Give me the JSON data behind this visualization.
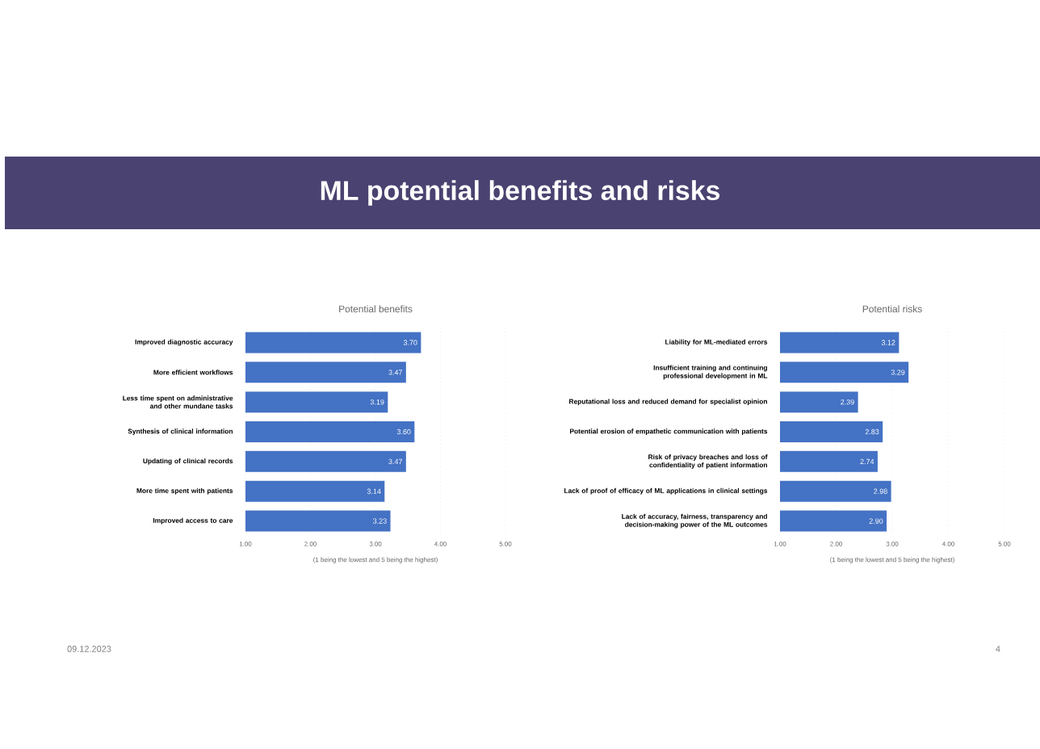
{
  "chart_data": [
    {
      "type": "bar",
      "orientation": "horizontal",
      "title": "Potential benefits",
      "xlabel": "(1 being the lowest and 5 being the highest)",
      "categories": [
        "Improved diagnostic accuracy",
        "More efficient workflows",
        "Less time spent on administrative and other mundane tasks",
        "Synthesis of clinical information",
        "Updating of clinical records",
        "More time spent with patients",
        "Improved access to care"
      ],
      "values": [
        3.7,
        3.47,
        3.19,
        3.6,
        3.47,
        3.14,
        3.23
      ],
      "value_labels": [
        "3.70",
        "3.47",
        "3.19",
        "3.60",
        "3.47",
        "3.14",
        "3.23"
      ],
      "color": "#4472c4",
      "grid": "x",
      "xlim": [
        1,
        5
      ],
      "xticks": [
        {
          "value": 1,
          "label": "1.00"
        },
        {
          "value": 2,
          "label": "2.00"
        },
        {
          "value": 3,
          "label": "3.00"
        },
        {
          "value": 4,
          "label": "4.00"
        },
        {
          "value": 5,
          "label": "5.00"
        }
      ],
      "annotations": [
        "ML potential benefits and risks",
        "09.12.2023",
        "4"
      ]
    },
    {
      "type": "bar",
      "orientation": "horizontal",
      "title": "Potential risks",
      "xlabel": "(1 being the lowest and 5 being the highest)",
      "categories": [
        "Liability for ML-mediated errors",
        "Insufficient training and continuing professional development in ML",
        "Reputational loss and reduced demand for specialist opinion",
        "Potential erosion of empathetic communication with patients",
        "Risk of privacy breaches and loss of confidentiality of patient information",
        "Lack of proof of efficacy of ML applications in clinical settings",
        "Lack of accuracy, fairness, transparency and decision-making power of the ML outcomes"
      ],
      "values": [
        3.12,
        3.29,
        2.39,
        2.83,
        2.74,
        2.98,
        2.9
      ],
      "value_labels": [
        "3.12",
        "3.29",
        "2.39",
        "2.83",
        "2.74",
        "2.98",
        "2.90"
      ],
      "color": "#4472c4",
      "grid": "x",
      "xlim": [
        1,
        5
      ],
      "xticks": [
        {
          "value": 1,
          "label": "1.00"
        },
        {
          "value": 2,
          "label": "2.00"
        },
        {
          "value": 3,
          "label": "3.00"
        },
        {
          "value": 4,
          "label": "4.00"
        },
        {
          "value": 5,
          "label": "5.00"
        }
      ]
    }
  ]
}
